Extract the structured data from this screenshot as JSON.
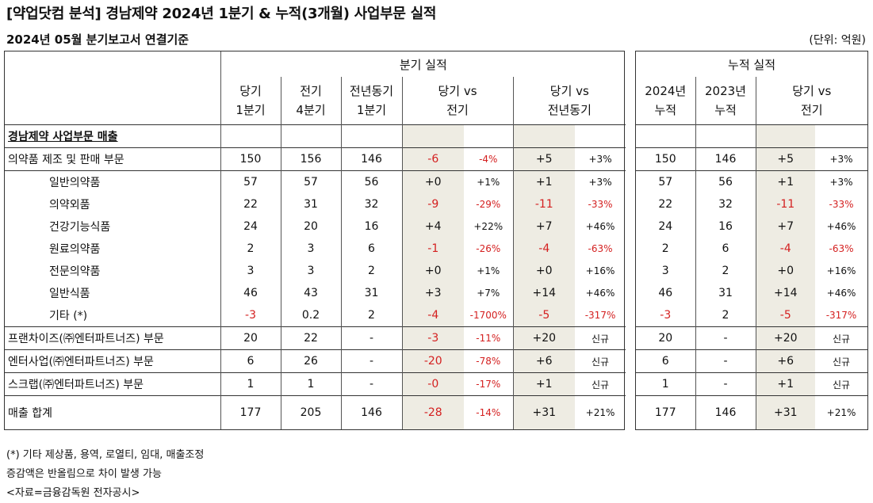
{
  "title": "[약업닷컴 분석] 경남제약 2024년 1분기 & 누적(3개월) 사업부문 실적",
  "subtitle": "2024년 05월 분기보고서 연결기준",
  "unit": "(단위: 억원)",
  "left_header": {
    "group": "분기 실적",
    "cols": [
      {
        "l1": "당기",
        "l2": "1분기"
      },
      {
        "l1": "전기",
        "l2": "4분기"
      },
      {
        "l1": "전년동기",
        "l2": "1분기"
      },
      {
        "l1": "당기 vs",
        "l2": "전기"
      },
      {
        "l1": "당기 vs",
        "l2": "전년동기"
      }
    ]
  },
  "right_header": {
    "group": "누적 실적",
    "cols": [
      {
        "l1": "2024년",
        "l2": "누적"
      },
      {
        "l1": "2023년",
        "l2": "누적"
      },
      {
        "l1": "당기 vs",
        "l2": "전기"
      }
    ]
  },
  "section_label": "경남제약 사업부문 매출",
  "rows": [
    {
      "label": "의약품 제조 및 판매 부문",
      "q": [
        "150",
        "156",
        "146"
      ],
      "d1": "-6",
      "p1": "-4%",
      "d2": "+5",
      "p2": "+3%",
      "c": [
        "150",
        "146"
      ],
      "d3": "+5",
      "p3": "+3%"
    },
    {
      "label": "일반의약품",
      "q": [
        "57",
        "57",
        "56"
      ],
      "d1": "+0",
      "p1": "+1%",
      "d2": "+1",
      "p2": "+3%",
      "c": [
        "57",
        "56"
      ],
      "d3": "+1",
      "p3": "+3%"
    },
    {
      "label": "의약외품",
      "q": [
        "22",
        "31",
        "32"
      ],
      "d1": "-9",
      "p1": "-29%",
      "d2": "-11",
      "p2": "-33%",
      "c": [
        "22",
        "32"
      ],
      "d3": "-11",
      "p3": "-33%"
    },
    {
      "label": "건강기능식품",
      "q": [
        "24",
        "20",
        "16"
      ],
      "d1": "+4",
      "p1": "+22%",
      "d2": "+7",
      "p2": "+46%",
      "c": [
        "24",
        "16"
      ],
      "d3": "+7",
      "p3": "+46%"
    },
    {
      "label": "원료의약품",
      "q": [
        "2",
        "3",
        "6"
      ],
      "d1": "-1",
      "p1": "-26%",
      "d2": "-4",
      "p2": "-63%",
      "c": [
        "2",
        "6"
      ],
      "d3": "-4",
      "p3": "-63%"
    },
    {
      "label": "전문의약품",
      "q": [
        "3",
        "3",
        "2"
      ],
      "d1": "+0",
      "p1": "+1%",
      "d2": "+0",
      "p2": "+16%",
      "c": [
        "3",
        "2"
      ],
      "d3": "+0",
      "p3": "+16%"
    },
    {
      "label": "일반식품",
      "q": [
        "46",
        "43",
        "31"
      ],
      "d1": "+3",
      "p1": "+7%",
      "d2": "+14",
      "p2": "+46%",
      "c": [
        "46",
        "31"
      ],
      "d3": "+14",
      "p3": "+46%"
    },
    {
      "label": "기타 (*)",
      "q": [
        "-3",
        "0.2",
        "2"
      ],
      "d1": "-4",
      "p1": "-1700%",
      "d2": "-5",
      "p2": "-317%",
      "c": [
        "-3",
        "2"
      ],
      "d3": "-5",
      "p3": "-317%"
    },
    {
      "label": "프랜차이즈(㈜엔터파트너즈) 부문",
      "q": [
        "20",
        "22",
        "-"
      ],
      "d1": "-3",
      "p1": "-11%",
      "d2": "+20",
      "p2": "신규",
      "c": [
        "20",
        "-"
      ],
      "d3": "+20",
      "p3": "신규"
    },
    {
      "label": "엔터사업(㈜엔터파트너즈) 부문",
      "q": [
        "6",
        "26",
        "-"
      ],
      "d1": "-20",
      "p1": "-78%",
      "d2": "+6",
      "p2": "신규",
      "c": [
        "6",
        "-"
      ],
      "d3": "+6",
      "p3": "신규"
    },
    {
      "label": "스크랩(㈜엔터파트너즈) 부문",
      "q": [
        "1",
        "1",
        "-"
      ],
      "d1": "-0",
      "p1": "-17%",
      "d2": "+1",
      "p2": "신규",
      "c": [
        "1",
        "-"
      ],
      "d3": "+1",
      "p3": "신규"
    },
    {
      "label": "매출 합계",
      "q": [
        "177",
        "205",
        "146"
      ],
      "d1": "-28",
      "p1": "-14%",
      "d2": "+31",
      "p2": "+21%",
      "c": [
        "177",
        "146"
      ],
      "d3": "+31",
      "p3": "+21%"
    }
  ],
  "notes": [
    "(*) 기타 제상품, 용역, 로열티, 임대, 매출조정",
    "증감액은 반올림으로 차이 발생 가능",
    "<자료=금융감독원 전자공시>"
  ],
  "colors": {
    "negative": "#d42020",
    "shade": "#eeece3"
  }
}
